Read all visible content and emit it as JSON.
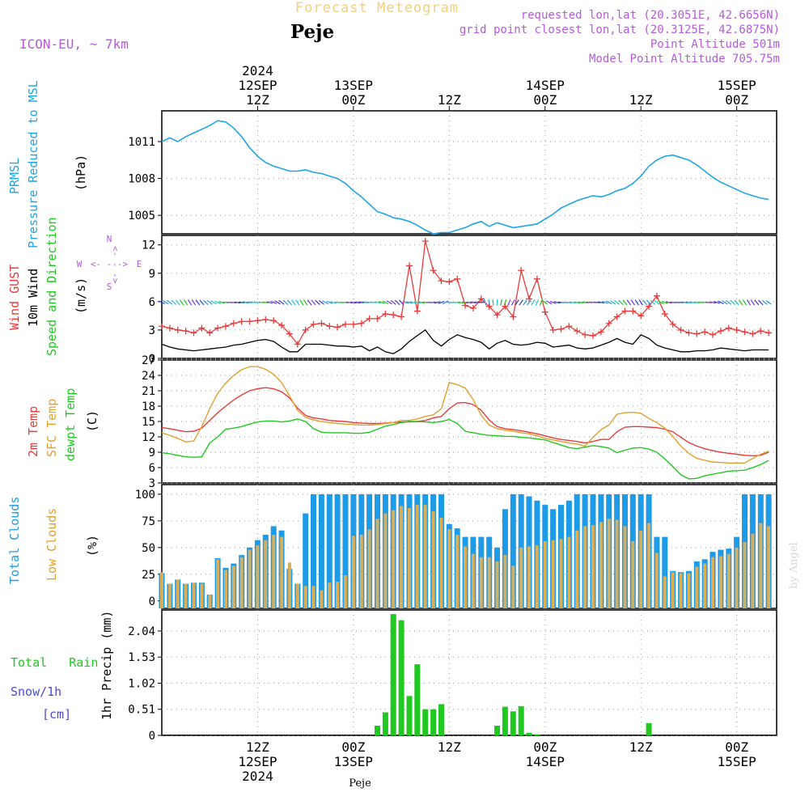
{
  "header": {
    "title": "Forecast Meteogram",
    "location": "Peje",
    "model": "ICON-EU, ~ 7km",
    "requested": "requested lon,lat (20.3051E, 42.6656N)",
    "gridpoint": "grid point closest lon,lat (20.3125E, 42.6875N)",
    "point_alt": "Point Altitude 501m",
    "model_alt": "Model Point Altitude 705.75m",
    "footer_location": "Peje",
    "credit": "by Angel"
  },
  "colors": {
    "pressure": "#1ea5e6",
    "gust": "#e83c3c",
    "wind": "#000000",
    "temp2m": "#e83c3c",
    "sfctemp": "#e0a030",
    "dewpt": "#22c822",
    "total_clouds": "#1e9be6",
    "low_clouds": "#d9ae5a",
    "rain": "#22c822",
    "snow": "#4a4adc",
    "purple": "#b45adc",
    "grid": "#9a9a9a"
  },
  "time_axis": {
    "hours_from": 0,
    "hours_to": 77,
    "top_ticks": [
      {
        "hour": 12,
        "lines": [
          "2024",
          "12SEP",
          "12Z"
        ]
      },
      {
        "hour": 24,
        "lines": [
          "13SEP",
          "00Z"
        ]
      },
      {
        "hour": 36,
        "lines": [
          "12Z"
        ]
      },
      {
        "hour": 48,
        "lines": [
          "14SEP",
          "00Z"
        ]
      },
      {
        "hour": 60,
        "lines": [
          "12Z"
        ]
      },
      {
        "hour": 72,
        "lines": [
          "15SEP",
          "00Z"
        ]
      }
    ],
    "bottom_ticks": [
      {
        "hour": 12,
        "lines": [
          "12Z",
          "12SEP",
          "2024"
        ]
      },
      {
        "hour": 24,
        "lines": [
          "00Z",
          "13SEP"
        ]
      },
      {
        "hour": 36,
        "lines": [
          "12Z"
        ]
      },
      {
        "hour": 48,
        "lines": [
          "00Z",
          "14SEP"
        ]
      },
      {
        "hour": 60,
        "lines": [
          "12Z"
        ]
      },
      {
        "hour": 72,
        "lines": [
          "00Z",
          "15SEP"
        ]
      }
    ]
  },
  "labels": {
    "pressure": [
      "PRMSL",
      "Pressure Reduced to MSL"
    ],
    "pressure_unit": "(hPa)",
    "wind_gust": "Wind GUST",
    "wind_10m": "10m Wind",
    "wind_dir": "Speed and Direction",
    "wind_unit": "(m/s)",
    "compass": {
      "n": "N",
      "s": "S",
      "w": "W",
      "e": "E",
      "ns": "<- - ->"
    },
    "t2m": "2m Temp",
    "tsfc": "SFC Temp",
    "tdew": "dewpt Temp",
    "temp_unit": "(C)",
    "tcc": "Total Clouds",
    "lcc": "Low Clouds",
    "cloud_unit": "(%)",
    "rain": "Total   Rain",
    "snow": "Snow/1h",
    "snow_unit": "[cm]",
    "precip_unit": "1hr Precip (mm)"
  },
  "chart_data": [
    {
      "type": "line",
      "panel": "pressure",
      "ylabel": "(hPa)",
      "ylim": [
        1003.5,
        1013.5
      ],
      "yticks": [
        1005,
        1008,
        1011
      ],
      "x_hours": [
        0,
        1,
        2,
        3,
        4,
        5,
        6,
        7,
        8,
        9,
        10,
        11,
        12,
        13,
        14,
        15,
        16,
        17,
        18,
        19,
        20,
        21,
        22,
        23,
        24,
        25,
        26,
        27,
        28,
        29,
        30,
        31,
        32,
        33,
        34,
        35,
        36,
        37,
        38,
        39,
        40,
        41,
        42,
        43,
        44,
        45,
        46,
        47,
        48,
        49,
        50,
        51,
        52,
        53,
        54,
        55,
        56,
        57,
        58,
        59,
        60,
        61,
        62,
        63,
        64,
        65,
        66,
        67,
        68,
        69,
        70,
        71,
        72,
        73,
        74,
        75,
        76
      ],
      "series": [
        {
          "name": "PRMSL",
          "values": [
            1011.0,
            1011.3,
            1011.0,
            1011.4,
            1011.7,
            1012.0,
            1012.3,
            1012.7,
            1012.6,
            1012.1,
            1011.4,
            1010.5,
            1009.8,
            1009.3,
            1009.0,
            1008.8,
            1008.6,
            1008.6,
            1008.7,
            1008.5,
            1008.4,
            1008.2,
            1008.0,
            1007.6,
            1007.0,
            1006.5,
            1005.9,
            1005.3,
            1005.1,
            1004.8,
            1004.7,
            1004.5,
            1004.2,
            1003.8,
            1003.5,
            1003.6,
            1003.6,
            1003.8,
            1004.0,
            1004.3,
            1004.5,
            1004.1,
            1004.4,
            1004.2,
            1004.0,
            1004.1,
            1004.2,
            1004.3,
            1004.7,
            1005.1,
            1005.6,
            1005.9,
            1006.2,
            1006.4,
            1006.6,
            1006.5,
            1006.7,
            1007.0,
            1007.2,
            1007.6,
            1008.2,
            1009.0,
            1009.5,
            1009.8,
            1009.9,
            1009.7,
            1009.5,
            1009.1,
            1008.6,
            1008.1,
            1007.7,
            1007.4,
            1007.1,
            1006.8,
            1006.6,
            1006.4,
            1006.3
          ]
        }
      ]
    },
    {
      "type": "line",
      "panel": "wind",
      "ylabel": "(m/s)",
      "ylim": [
        0,
        13
      ],
      "yticks": [
        0,
        3,
        6,
        9,
        12
      ],
      "x_hours": [
        0,
        1,
        2,
        3,
        4,
        5,
        6,
        7,
        8,
        9,
        10,
        11,
        12,
        13,
        14,
        15,
        16,
        17,
        18,
        19,
        20,
        21,
        22,
        23,
        24,
        25,
        26,
        27,
        28,
        29,
        30,
        31,
        32,
        33,
        34,
        35,
        36,
        37,
        38,
        39,
        40,
        41,
        42,
        43,
        44,
        45,
        46,
        47,
        48,
        49,
        50,
        51,
        52,
        53,
        54,
        55,
        56,
        57,
        58,
        59,
        60,
        61,
        62,
        63,
        64,
        65,
        66,
        67,
        68,
        69,
        70,
        71,
        72,
        73,
        74,
        75,
        76
      ],
      "series": [
        {
          "name": "Wind GUST",
          "values": [
            3.4,
            3.2,
            3.0,
            2.9,
            2.7,
            3.2,
            2.7,
            3.2,
            3.4,
            3.7,
            3.9,
            3.9,
            4.0,
            4.1,
            4.0,
            3.5,
            2.6,
            1.5,
            3.0,
            3.6,
            3.7,
            3.4,
            3.3,
            3.6,
            3.6,
            3.7,
            4.2,
            4.2,
            4.7,
            4.6,
            4.4,
            9.8,
            5.0,
            12.4,
            9.3,
            8.2,
            8.1,
            8.4,
            5.6,
            5.3,
            6.3,
            5.5,
            4.6,
            5.5,
            4.4,
            9.3,
            6.3,
            8.4,
            4.9,
            3.0,
            3.1,
            3.4,
            2.9,
            2.5,
            2.4,
            2.8,
            3.7,
            4.4,
            5.0,
            5.0,
            4.5,
            5.5,
            6.6,
            4.7,
            3.6,
            3.0,
            2.7,
            2.6,
            2.8,
            2.5,
            2.9,
            3.2,
            3.0,
            2.8,
            2.6,
            2.9,
            2.7
          ]
        },
        {
          "name": "10m Wind",
          "values": [
            1.5,
            1.2,
            1.0,
            0.9,
            0.8,
            0.9,
            1.0,
            1.1,
            1.2,
            1.4,
            1.5,
            1.7,
            1.9,
            2.0,
            1.8,
            1.2,
            0.7,
            0.7,
            1.5,
            1.5,
            1.5,
            1.4,
            1.3,
            1.3,
            1.2,
            1.3,
            0.8,
            1.2,
            0.7,
            0.5,
            1.0,
            1.8,
            2.4,
            3.0,
            1.9,
            1.3,
            2.0,
            2.5,
            2.2,
            2.0,
            1.7,
            1.0,
            1.6,
            1.9,
            1.5,
            1.4,
            1.5,
            1.7,
            1.6,
            1.2,
            1.3,
            1.4,
            1.1,
            1.0,
            1.1,
            1.4,
            1.7,
            2.1,
            1.7,
            1.5,
            2.5,
            2.1,
            1.4,
            1.1,
            0.9,
            0.7,
            0.7,
            0.8,
            0.8,
            0.9,
            1.1,
            1.0,
            0.9,
            0.8,
            0.9,
            0.9,
            0.9
          ]
        }
      ]
    },
    {
      "type": "line",
      "panel": "temperature",
      "ylabel": "(C)",
      "ylim": [
        3,
        27
      ],
      "yticks": [
        3,
        6,
        9,
        12,
        15,
        18,
        21,
        24,
        27
      ],
      "x_hours": [
        0,
        1,
        2,
        3,
        4,
        5,
        6,
        7,
        8,
        9,
        10,
        11,
        12,
        13,
        14,
        15,
        16,
        17,
        18,
        19,
        20,
        21,
        22,
        23,
        24,
        25,
        26,
        27,
        28,
        29,
        30,
        31,
        32,
        33,
        34,
        35,
        36,
        37,
        38,
        39,
        40,
        41,
        42,
        43,
        44,
        45,
        46,
        47,
        48,
        49,
        50,
        51,
        52,
        53,
        54,
        55,
        56,
        57,
        58,
        59,
        60,
        61,
        62,
        63,
        64,
        65,
        66,
        67,
        68,
        69,
        70,
        71,
        72,
        73,
        74,
        75,
        76
      ],
      "series": [
        {
          "name": "2m Temp",
          "values": [
            13.8,
            13.6,
            13.3,
            13.0,
            13.1,
            13.7,
            15.2,
            16.7,
            18.0,
            19.2,
            20.2,
            21.0,
            21.4,
            21.6,
            21.4,
            20.8,
            19.6,
            17.6,
            16.2,
            15.7,
            15.5,
            15.2,
            15.1,
            15.0,
            14.8,
            14.7,
            14.6,
            14.6,
            14.7,
            14.8,
            14.9,
            14.9,
            15.0,
            15.2,
            15.7,
            16.0,
            17.5,
            18.6,
            18.7,
            18.3,
            17.2,
            15.3,
            14.0,
            13.6,
            13.4,
            13.2,
            12.9,
            12.6,
            12.2,
            11.8,
            11.5,
            11.3,
            11.1,
            10.8,
            11.1,
            11.5,
            11.5,
            13.0,
            13.9,
            14.0,
            14.0,
            13.9,
            13.8,
            13.5,
            13.0,
            11.9,
            10.9,
            10.2,
            9.7,
            9.3,
            9.0,
            8.8,
            8.6,
            8.4,
            8.3,
            8.4,
            9.0
          ]
        },
        {
          "name": "SFC Temp",
          "values": [
            12.8,
            12.3,
            11.7,
            11.0,
            11.2,
            14.0,
            17.5,
            20.5,
            22.5,
            24.0,
            25.1,
            25.7,
            25.7,
            25.2,
            24.2,
            22.6,
            20.0,
            17.2,
            15.8,
            15.3,
            15.0,
            14.8,
            14.6,
            14.5,
            14.4,
            14.3,
            14.3,
            14.4,
            14.6,
            14.8,
            15.2,
            15.2,
            15.5,
            16.0,
            16.3,
            17.5,
            22.6,
            22.2,
            21.5,
            19.3,
            16.2,
            14.3,
            13.6,
            13.3,
            13.1,
            12.8,
            12.6,
            12.2,
            11.7,
            11.4,
            11.1,
            10.8,
            10.6,
            10.2,
            11.9,
            13.4,
            14.3,
            16.4,
            16.7,
            16.8,
            16.6,
            15.6,
            14.8,
            13.7,
            12.1,
            10.2,
            8.8,
            7.8,
            7.4,
            7.1,
            7.0,
            6.9,
            6.9,
            6.9,
            7.8,
            8.6,
            9.2
          ]
        },
        {
          "name": "dewpt Temp",
          "values": [
            8.9,
            8.7,
            8.4,
            8.1,
            8.0,
            8.1,
            10.8,
            12.0,
            13.5,
            13.7,
            14.0,
            14.5,
            14.9,
            15.1,
            15.1,
            14.9,
            15.1,
            15.5,
            15.0,
            13.6,
            12.9,
            12.8,
            12.8,
            12.8,
            12.7,
            12.7,
            12.9,
            13.5,
            14.1,
            14.4,
            14.8,
            15.0,
            15.0,
            14.9,
            14.8,
            15.0,
            15.4,
            14.6,
            13.1,
            12.8,
            12.5,
            12.3,
            12.2,
            12.1,
            12.1,
            11.9,
            11.8,
            11.6,
            11.4,
            10.9,
            10.4,
            9.9,
            9.7,
            10.0,
            10.3,
            10.1,
            9.8,
            8.9,
            9.4,
            9.8,
            9.9,
            9.6,
            9.0,
            7.7,
            6.2,
            4.6,
            3.8,
            3.9,
            4.4,
            4.7,
            5.0,
            5.3,
            5.4,
            5.5,
            6.0,
            6.6,
            7.4
          ]
        }
      ]
    },
    {
      "type": "bar",
      "panel": "clouds",
      "ylabel": "(%)",
      "ylim": [
        -7,
        109
      ],
      "yticks": [
        0,
        25,
        50,
        75,
        100
      ],
      "x_hours": [
        0,
        1,
        2,
        3,
        4,
        5,
        6,
        7,
        8,
        9,
        10,
        11,
        12,
        13,
        14,
        15,
        16,
        17,
        18,
        19,
        20,
        21,
        22,
        23,
        24,
        25,
        26,
        27,
        28,
        29,
        30,
        31,
        32,
        33,
        34,
        35,
        36,
        37,
        38,
        39,
        40,
        41,
        42,
        43,
        44,
        45,
        46,
        47,
        48,
        49,
        50,
        51,
        52,
        53,
        54,
        55,
        56,
        57,
        58,
        59,
        60,
        61,
        62,
        63,
        64,
        65,
        66,
        67,
        68,
        69,
        70,
        71,
        72,
        73,
        74,
        75,
        76
      ],
      "series": [
        {
          "name": "Total Clouds",
          "values": [
            26,
            16,
            20,
            16,
            17,
            17,
            6,
            40,
            31,
            35,
            43,
            50,
            57,
            62,
            70,
            66,
            30,
            16,
            82,
            100,
            100,
            100,
            100,
            100,
            100,
            100,
            100,
            100,
            100,
            100,
            100,
            100,
            100,
            100,
            100,
            100,
            72,
            68,
            60,
            60,
            60,
            60,
            50,
            86,
            100,
            100,
            98,
            94,
            90,
            86,
            90,
            94,
            100,
            100,
            100,
            100,
            100,
            100,
            100,
            100,
            100,
            100,
            60,
            60,
            28,
            27,
            28,
            37,
            39,
            46,
            48,
            49,
            60,
            100,
            100,
            100,
            100
          ]
        },
        {
          "name": "Low Clouds",
          "values": [
            27,
            16,
            20,
            16,
            17,
            16,
            6,
            39,
            29,
            33,
            41,
            48,
            52,
            57,
            62,
            60,
            36,
            16,
            14,
            14,
            10,
            17,
            18,
            24,
            61,
            62,
            67,
            77,
            82,
            85,
            89,
            87,
            90,
            90,
            84,
            78,
            67,
            62,
            51,
            44,
            41,
            41,
            37,
            43,
            33,
            50,
            51,
            52,
            56,
            57,
            58,
            60,
            66,
            70,
            71,
            74,
            77,
            76,
            70,
            56,
            66,
            73,
            45,
            23,
            27,
            26,
            26,
            32,
            35,
            41,
            42,
            44,
            50,
            55,
            63,
            73,
            70
          ]
        }
      ]
    },
    {
      "type": "bar",
      "panel": "precipitation",
      "ylabel": "1hr Precip (mm)",
      "ylim": [
        0,
        2.45
      ],
      "yticks": [
        0,
        0.51,
        1.02,
        1.53,
        2.04
      ],
      "series": [
        {
          "name": "Total Rain",
          "values_by_hour": {
            "27": 0.19,
            "28": 0.45,
            "29": 2.37,
            "30": 2.25,
            "31": 0.77,
            "32": 1.39,
            "33": 0.51,
            "34": 0.51,
            "35": 0.61,
            "42": 0.19,
            "43": 0.56,
            "44": 0.47,
            "45": 0.57,
            "46": 0.05,
            "47": 0.02,
            "61": 0.24
          }
        }
      ]
    }
  ]
}
